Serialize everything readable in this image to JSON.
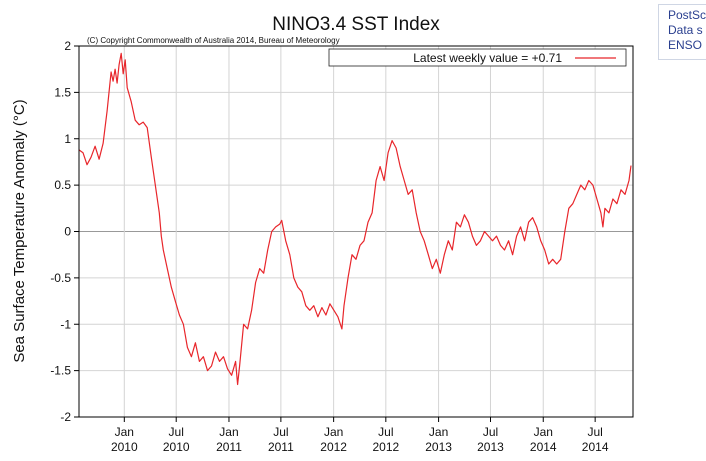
{
  "side_panel": {
    "lines": [
      "PostSc",
      "Data s",
      "ENSO"
    ]
  },
  "chart_data": {
    "type": "line",
    "title": "NINO3.4 SST Index",
    "copyright": "(C) Copyright Commonwealth of Australia 2014, Bureau of Meteorology",
    "ylabel": "Sea Surface Temperature Anomaly (°C)",
    "xlabel": "",
    "xlim": [
      "2009-07-27",
      "2014-11-10"
    ],
    "ylim": [
      -2,
      2
    ],
    "grid": true,
    "yticks": [
      {
        "value": 2,
        "label": "2"
      },
      {
        "value": 1.5,
        "label": "1.5"
      },
      {
        "value": 1,
        "label": "1"
      },
      {
        "value": 0.5,
        "label": "0.5"
      },
      {
        "value": 0,
        "label": "0"
      },
      {
        "value": -0.5,
        "label": "-0.5"
      },
      {
        "value": -1,
        "label": "-1"
      },
      {
        "value": -1.5,
        "label": "-1.5"
      },
      {
        "value": -2,
        "label": "-2"
      }
    ],
    "xticks": [
      {
        "date": "2010-01-01",
        "label": "Jan",
        "year": "2010"
      },
      {
        "date": "2010-07-01",
        "label": "Jul",
        "year": "2010"
      },
      {
        "date": "2011-01-01",
        "label": "Jan",
        "year": "2011"
      },
      {
        "date": "2011-07-01",
        "label": "Jul",
        "year": "2011"
      },
      {
        "date": "2012-01-01",
        "label": "Jan",
        "year": "2012"
      },
      {
        "date": "2012-07-01",
        "label": "Jul",
        "year": "2012"
      },
      {
        "date": "2013-01-01",
        "label": "Jan",
        "year": "2013"
      },
      {
        "date": "2013-07-01",
        "label": "Jul",
        "year": "2013"
      },
      {
        "date": "2014-01-01",
        "label": "Jan",
        "year": "2014"
      },
      {
        "date": "2014-07-01",
        "label": "Jul",
        "year": "2014"
      }
    ],
    "legend": {
      "position": "top-right",
      "label": "Latest weekly value = +0.71"
    },
    "series": [
      {
        "color": "#e8262b",
        "points": [
          [
            "2009-07-27",
            0.88
          ],
          [
            "2009-08-10",
            0.85
          ],
          [
            "2009-08-24",
            0.72
          ],
          [
            "2009-09-07",
            0.8
          ],
          [
            "2009-09-21",
            0.92
          ],
          [
            "2009-10-05",
            0.78
          ],
          [
            "2009-10-19",
            0.95
          ],
          [
            "2009-11-02",
            1.3
          ],
          [
            "2009-11-16",
            1.72
          ],
          [
            "2009-11-23",
            1.62
          ],
          [
            "2009-11-30",
            1.75
          ],
          [
            "2009-12-07",
            1.6
          ],
          [
            "2009-12-14",
            1.8
          ],
          [
            "2009-12-21",
            1.92
          ],
          [
            "2009-12-28",
            1.7
          ],
          [
            "2010-01-04",
            1.85
          ],
          [
            "2010-01-11",
            1.55
          ],
          [
            "2010-01-25",
            1.4
          ],
          [
            "2010-02-08",
            1.2
          ],
          [
            "2010-02-22",
            1.15
          ],
          [
            "2010-03-08",
            1.18
          ],
          [
            "2010-03-22",
            1.12
          ],
          [
            "2010-04-05",
            0.8
          ],
          [
            "2010-04-19",
            0.5
          ],
          [
            "2010-05-03",
            0.2
          ],
          [
            "2010-05-10",
            -0.05
          ],
          [
            "2010-05-17",
            -0.2
          ],
          [
            "2010-05-31",
            -0.4
          ],
          [
            "2010-06-14",
            -0.6
          ],
          [
            "2010-06-28",
            -0.75
          ],
          [
            "2010-07-12",
            -0.9
          ],
          [
            "2010-07-26",
            -1.0
          ],
          [
            "2010-08-09",
            -1.25
          ],
          [
            "2010-08-23",
            -1.35
          ],
          [
            "2010-09-06",
            -1.2
          ],
          [
            "2010-09-20",
            -1.4
          ],
          [
            "2010-10-04",
            -1.35
          ],
          [
            "2010-10-18",
            -1.5
          ],
          [
            "2010-11-01",
            -1.45
          ],
          [
            "2010-11-15",
            -1.3
          ],
          [
            "2010-11-29",
            -1.4
          ],
          [
            "2010-12-13",
            -1.35
          ],
          [
            "2010-12-27",
            -1.48
          ],
          [
            "2011-01-10",
            -1.55
          ],
          [
            "2011-01-24",
            -1.4
          ],
          [
            "2011-01-31",
            -1.65
          ],
          [
            "2011-02-07",
            -1.45
          ],
          [
            "2011-02-21",
            -1.0
          ],
          [
            "2011-03-07",
            -1.05
          ],
          [
            "2011-03-21",
            -0.85
          ],
          [
            "2011-04-04",
            -0.55
          ],
          [
            "2011-04-18",
            -0.4
          ],
          [
            "2011-05-02",
            -0.45
          ],
          [
            "2011-05-16",
            -0.2
          ],
          [
            "2011-05-30",
            0.0
          ],
          [
            "2011-06-13",
            0.05
          ],
          [
            "2011-06-27",
            0.08
          ],
          [
            "2011-07-04",
            0.12
          ],
          [
            "2011-07-18",
            -0.1
          ],
          [
            "2011-08-01",
            -0.25
          ],
          [
            "2011-08-15",
            -0.5
          ],
          [
            "2011-08-29",
            -0.6
          ],
          [
            "2011-09-12",
            -0.65
          ],
          [
            "2011-09-26",
            -0.8
          ],
          [
            "2011-10-10",
            -0.85
          ],
          [
            "2011-10-24",
            -0.8
          ],
          [
            "2011-11-07",
            -0.92
          ],
          [
            "2011-11-21",
            -0.82
          ],
          [
            "2011-12-05",
            -0.9
          ],
          [
            "2011-12-19",
            -0.78
          ],
          [
            "2012-01-02",
            -0.85
          ],
          [
            "2012-01-16",
            -0.92
          ],
          [
            "2012-01-30",
            -1.05
          ],
          [
            "2012-02-06",
            -0.8
          ],
          [
            "2012-02-20",
            -0.5
          ],
          [
            "2012-03-05",
            -0.25
          ],
          [
            "2012-03-19",
            -0.3
          ],
          [
            "2012-04-02",
            -0.15
          ],
          [
            "2012-04-16",
            -0.1
          ],
          [
            "2012-04-30",
            0.1
          ],
          [
            "2012-05-14",
            0.2
          ],
          [
            "2012-05-28",
            0.55
          ],
          [
            "2012-06-11",
            0.7
          ],
          [
            "2012-06-25",
            0.55
          ],
          [
            "2012-07-09",
            0.85
          ],
          [
            "2012-07-23",
            0.98
          ],
          [
            "2012-08-06",
            0.9
          ],
          [
            "2012-08-20",
            0.7
          ],
          [
            "2012-09-03",
            0.55
          ],
          [
            "2012-09-17",
            0.4
          ],
          [
            "2012-10-01",
            0.45
          ],
          [
            "2012-10-15",
            0.2
          ],
          [
            "2012-10-29",
            0.0
          ],
          [
            "2012-11-12",
            -0.1
          ],
          [
            "2012-11-26",
            -0.25
          ],
          [
            "2012-12-10",
            -0.4
          ],
          [
            "2012-12-24",
            -0.3
          ],
          [
            "2013-01-07",
            -0.45
          ],
          [
            "2013-01-21",
            -0.25
          ],
          [
            "2013-02-04",
            -0.1
          ],
          [
            "2013-02-18",
            -0.2
          ],
          [
            "2013-03-04",
            0.1
          ],
          [
            "2013-03-18",
            0.05
          ],
          [
            "2013-04-01",
            0.18
          ],
          [
            "2013-04-15",
            0.1
          ],
          [
            "2013-04-29",
            -0.05
          ],
          [
            "2013-05-13",
            -0.15
          ],
          [
            "2013-05-27",
            -0.1
          ],
          [
            "2013-06-10",
            0.0
          ],
          [
            "2013-06-24",
            -0.05
          ],
          [
            "2013-07-08",
            -0.1
          ],
          [
            "2013-07-22",
            -0.05
          ],
          [
            "2013-08-05",
            -0.15
          ],
          [
            "2013-08-19",
            -0.2
          ],
          [
            "2013-09-02",
            -0.1
          ],
          [
            "2013-09-16",
            -0.25
          ],
          [
            "2013-09-30",
            -0.05
          ],
          [
            "2013-10-14",
            0.05
          ],
          [
            "2013-10-28",
            -0.1
          ],
          [
            "2013-11-11",
            0.1
          ],
          [
            "2013-11-25",
            0.15
          ],
          [
            "2013-12-09",
            0.05
          ],
          [
            "2013-12-23",
            -0.1
          ],
          [
            "2014-01-06",
            -0.2
          ],
          [
            "2014-01-20",
            -0.35
          ],
          [
            "2014-02-03",
            -0.3
          ],
          [
            "2014-02-17",
            -0.35
          ],
          [
            "2014-03-03",
            -0.3
          ],
          [
            "2014-03-17",
            0.0
          ],
          [
            "2014-03-31",
            0.25
          ],
          [
            "2014-04-14",
            0.3
          ],
          [
            "2014-04-28",
            0.4
          ],
          [
            "2014-05-12",
            0.5
          ],
          [
            "2014-05-26",
            0.45
          ],
          [
            "2014-06-09",
            0.55
          ],
          [
            "2014-06-23",
            0.5
          ],
          [
            "2014-07-07",
            0.35
          ],
          [
            "2014-07-21",
            0.2
          ],
          [
            "2014-07-28",
            0.05
          ],
          [
            "2014-08-04",
            0.25
          ],
          [
            "2014-08-18",
            0.2
          ],
          [
            "2014-09-01",
            0.35
          ],
          [
            "2014-09-15",
            0.3
          ],
          [
            "2014-09-29",
            0.45
          ],
          [
            "2014-10-13",
            0.4
          ],
          [
            "2014-10-27",
            0.55
          ],
          [
            "2014-11-03",
            0.71
          ]
        ]
      }
    ]
  }
}
